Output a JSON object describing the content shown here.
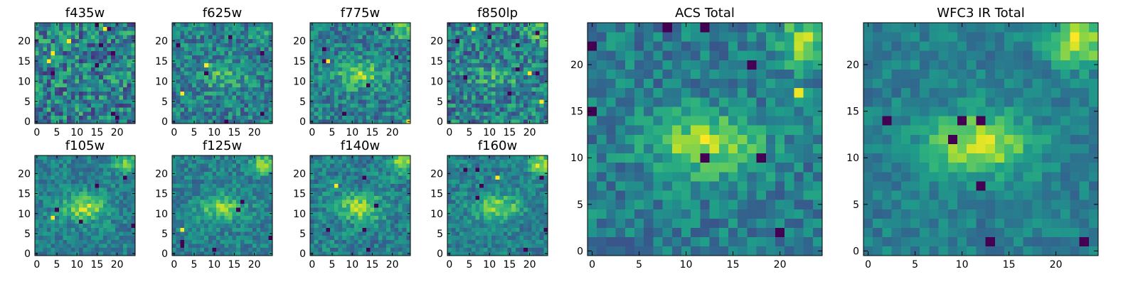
{
  "chart_data": [
    {
      "type": "heatmap",
      "title": "f435w",
      "grid_size": 25,
      "colormap": "viridis",
      "x_ticks": [
        0,
        5,
        10,
        15,
        20
      ],
      "y_ticks": [
        0,
        5,
        10,
        15,
        20
      ],
      "xlim": [
        0,
        24
      ],
      "ylim": [
        0,
        24
      ],
      "pattern": {
        "seed": 11,
        "noise": 0.85,
        "center_peak": 0.0,
        "corner_peak": 0.0,
        "hot_cells": 4,
        "cold_cells": 8
      }
    },
    {
      "type": "heatmap",
      "title": "f625w",
      "grid_size": 25,
      "colormap": "viridis",
      "x_ticks": [
        0,
        5,
        10,
        15,
        20
      ],
      "y_ticks": [
        0,
        5,
        10,
        15,
        20
      ],
      "xlim": [
        0,
        24
      ],
      "ylim": [
        0,
        24
      ],
      "pattern": {
        "seed": 23,
        "noise": 0.65,
        "center_peak": 0.35,
        "corner_peak": 0.2,
        "hot_cells": 2,
        "cold_cells": 6
      }
    },
    {
      "type": "heatmap",
      "title": "f775w",
      "grid_size": 25,
      "colormap": "viridis",
      "x_ticks": [
        0,
        5,
        10,
        15,
        20
      ],
      "y_ticks": [
        0,
        5,
        10,
        15,
        20
      ],
      "xlim": [
        0,
        24
      ],
      "ylim": [
        0,
        24
      ],
      "pattern": {
        "seed": 37,
        "noise": 0.6,
        "center_peak": 0.55,
        "corner_peak": 0.45,
        "hot_cells": 2,
        "cold_cells": 6
      }
    },
    {
      "type": "heatmap",
      "title": "f850lp",
      "grid_size": 25,
      "colormap": "viridis",
      "x_ticks": [
        0,
        5,
        10,
        15,
        20
      ],
      "y_ticks": [
        0,
        5,
        10,
        15,
        20
      ],
      "xlim": [
        0,
        24
      ],
      "ylim": [
        0,
        24
      ],
      "pattern": {
        "seed": 41,
        "noise": 0.75,
        "center_peak": 0.25,
        "corner_peak": 0.35,
        "hot_cells": 3,
        "cold_cells": 8
      }
    },
    {
      "type": "heatmap",
      "title": "f105w",
      "grid_size": 25,
      "colormap": "viridis",
      "x_ticks": [
        0,
        5,
        10,
        15,
        20
      ],
      "y_ticks": [
        0,
        5,
        10,
        15,
        20
      ],
      "xlim": [
        0,
        24
      ],
      "ylim": [
        0,
        24
      ],
      "pattern": {
        "seed": 53,
        "noise": 0.45,
        "center_peak": 0.65,
        "corner_peak": 0.55,
        "hot_cells": 1,
        "cold_cells": 5
      }
    },
    {
      "type": "heatmap",
      "title": "f125w",
      "grid_size": 25,
      "colormap": "viridis",
      "x_ticks": [
        0,
        5,
        10,
        15,
        20
      ],
      "y_ticks": [
        0,
        5,
        10,
        15,
        20
      ],
      "xlim": [
        0,
        24
      ],
      "ylim": [
        0,
        24
      ],
      "pattern": {
        "seed": 67,
        "noise": 0.45,
        "center_peak": 0.55,
        "corner_peak": 0.6,
        "hot_cells": 1,
        "cold_cells": 6
      }
    },
    {
      "type": "heatmap",
      "title": "f140w",
      "grid_size": 25,
      "colormap": "viridis",
      "x_ticks": [
        0,
        5,
        10,
        15,
        20
      ],
      "y_ticks": [
        0,
        5,
        10,
        15,
        20
      ],
      "xlim": [
        0,
        24
      ],
      "ylim": [
        0,
        24
      ],
      "pattern": {
        "seed": 71,
        "noise": 0.5,
        "center_peak": 0.65,
        "corner_peak": 0.6,
        "hot_cells": 1,
        "cold_cells": 5
      }
    },
    {
      "type": "heatmap",
      "title": "f160w",
      "grid_size": 25,
      "colormap": "viridis",
      "x_ticks": [
        0,
        5,
        10,
        15,
        20
      ],
      "y_ticks": [
        0,
        5,
        10,
        15,
        20
      ],
      "xlim": [
        0,
        24
      ],
      "ylim": [
        0,
        24
      ],
      "pattern": {
        "seed": 83,
        "noise": 0.45,
        "center_peak": 0.6,
        "corner_peak": 0.65,
        "hot_cells": 1,
        "cold_cells": 8
      }
    },
    {
      "type": "heatmap",
      "title": "ACS Total",
      "grid_size": 25,
      "colormap": "viridis",
      "x_ticks": [
        0,
        5,
        10,
        15,
        20
      ],
      "y_ticks": [
        0,
        5,
        10,
        15,
        20
      ],
      "xlim": [
        0,
        24
      ],
      "ylim": [
        0,
        24
      ],
      "pattern": {
        "seed": 97,
        "noise": 0.5,
        "center_peak": 0.7,
        "corner_peak": 0.6,
        "hot_cells": 1,
        "cold_cells": 8
      }
    },
    {
      "type": "heatmap",
      "title": "WFC3 IR Total",
      "grid_size": 25,
      "colormap": "viridis",
      "x_ticks": [
        0,
        5,
        10,
        15,
        20
      ],
      "y_ticks": [
        0,
        5,
        10,
        15,
        20
      ],
      "xlim": [
        0,
        24
      ],
      "ylim": [
        0,
        24
      ],
      "pattern": {
        "seed": 101,
        "noise": 0.35,
        "center_peak": 0.75,
        "corner_peak": 0.75,
        "hot_cells": 0,
        "cold_cells": 7
      }
    }
  ]
}
